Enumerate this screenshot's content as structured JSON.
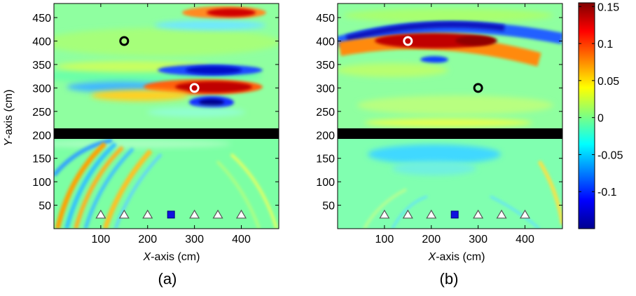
{
  "figure": {
    "panel_labels": [
      "(a)",
      "(b)"
    ]
  },
  "colorbar": {
    "ticks": [
      {
        "value": 0.15,
        "label": "0.15"
      },
      {
        "value": 0.1,
        "label": "0.1"
      },
      {
        "value": 0.05,
        "label": "0.05"
      },
      {
        "value": 0,
        "label": "0"
      },
      {
        "value": -0.05,
        "label": "-0.05"
      },
      {
        "value": -0.1,
        "label": "-0.1"
      }
    ],
    "range": [
      -0.15,
      0.155
    ],
    "colormap": "jet"
  },
  "chart_data": [
    {
      "type": "heatmap",
      "panel": "(a)",
      "xlabel_italic": "X",
      "xlabel_rest": "-axis (cm)",
      "ylabel_italic": "Y",
      "ylabel_rest": "-axis (cm)",
      "xlim": [
        0,
        480
      ],
      "ylim": [
        0,
        480
      ],
      "xticks": [
        100,
        200,
        300,
        400
      ],
      "yticks": [
        50,
        100,
        150,
        200,
        250,
        300,
        350,
        400,
        450
      ],
      "wall_band": {
        "y_from": 185,
        "y_to": 207,
        "color": "#000000"
      },
      "sensors_triangle": [
        [
          100,
          30
        ],
        [
          150,
          30
        ],
        [
          200,
          30
        ],
        [
          300,
          30
        ],
        [
          350,
          30
        ],
        [
          400,
          30
        ]
      ],
      "source_square": [
        250,
        30
      ],
      "target_white_circle": [
        300,
        300
      ],
      "target_black_circle": [
        150,
        400
      ],
      "field_peaks": [
        {
          "x": 300,
          "y": 300,
          "value": 0.15
        },
        {
          "x": 300,
          "y": 270,
          "value": -0.12
        },
        {
          "x": 320,
          "y": 340,
          "value": -0.1
        },
        {
          "x": 330,
          "y": 465,
          "value": 0.1
        }
      ]
    },
    {
      "type": "heatmap",
      "panel": "(b)",
      "xlabel_italic": "X",
      "xlabel_rest": "-axis (cm)",
      "ylabel_italic": "",
      "ylabel_rest": "",
      "xlim": [
        0,
        480
      ],
      "ylim": [
        0,
        480
      ],
      "xticks": [
        100,
        200,
        300,
        400
      ],
      "yticks": [
        50,
        100,
        150,
        200,
        250,
        300,
        350,
        400,
        450
      ],
      "wall_band": {
        "y_from": 185,
        "y_to": 207,
        "color": "#000000"
      },
      "sensors_triangle": [
        [
          100,
          30
        ],
        [
          150,
          30
        ],
        [
          200,
          30
        ],
        [
          300,
          30
        ],
        [
          350,
          30
        ],
        [
          400,
          30
        ]
      ],
      "source_square": [
        250,
        30
      ],
      "target_white_circle": [
        150,
        400
      ],
      "target_black_circle": [
        300,
        300
      ],
      "field_peaks": [
        {
          "x": 180,
          "y": 400,
          "value": 0.15
        },
        {
          "x": 200,
          "y": 440,
          "value": -0.13
        },
        {
          "x": 190,
          "y": 365,
          "value": -0.08
        },
        {
          "x": 200,
          "y": 155,
          "value": -0.04
        }
      ]
    }
  ]
}
